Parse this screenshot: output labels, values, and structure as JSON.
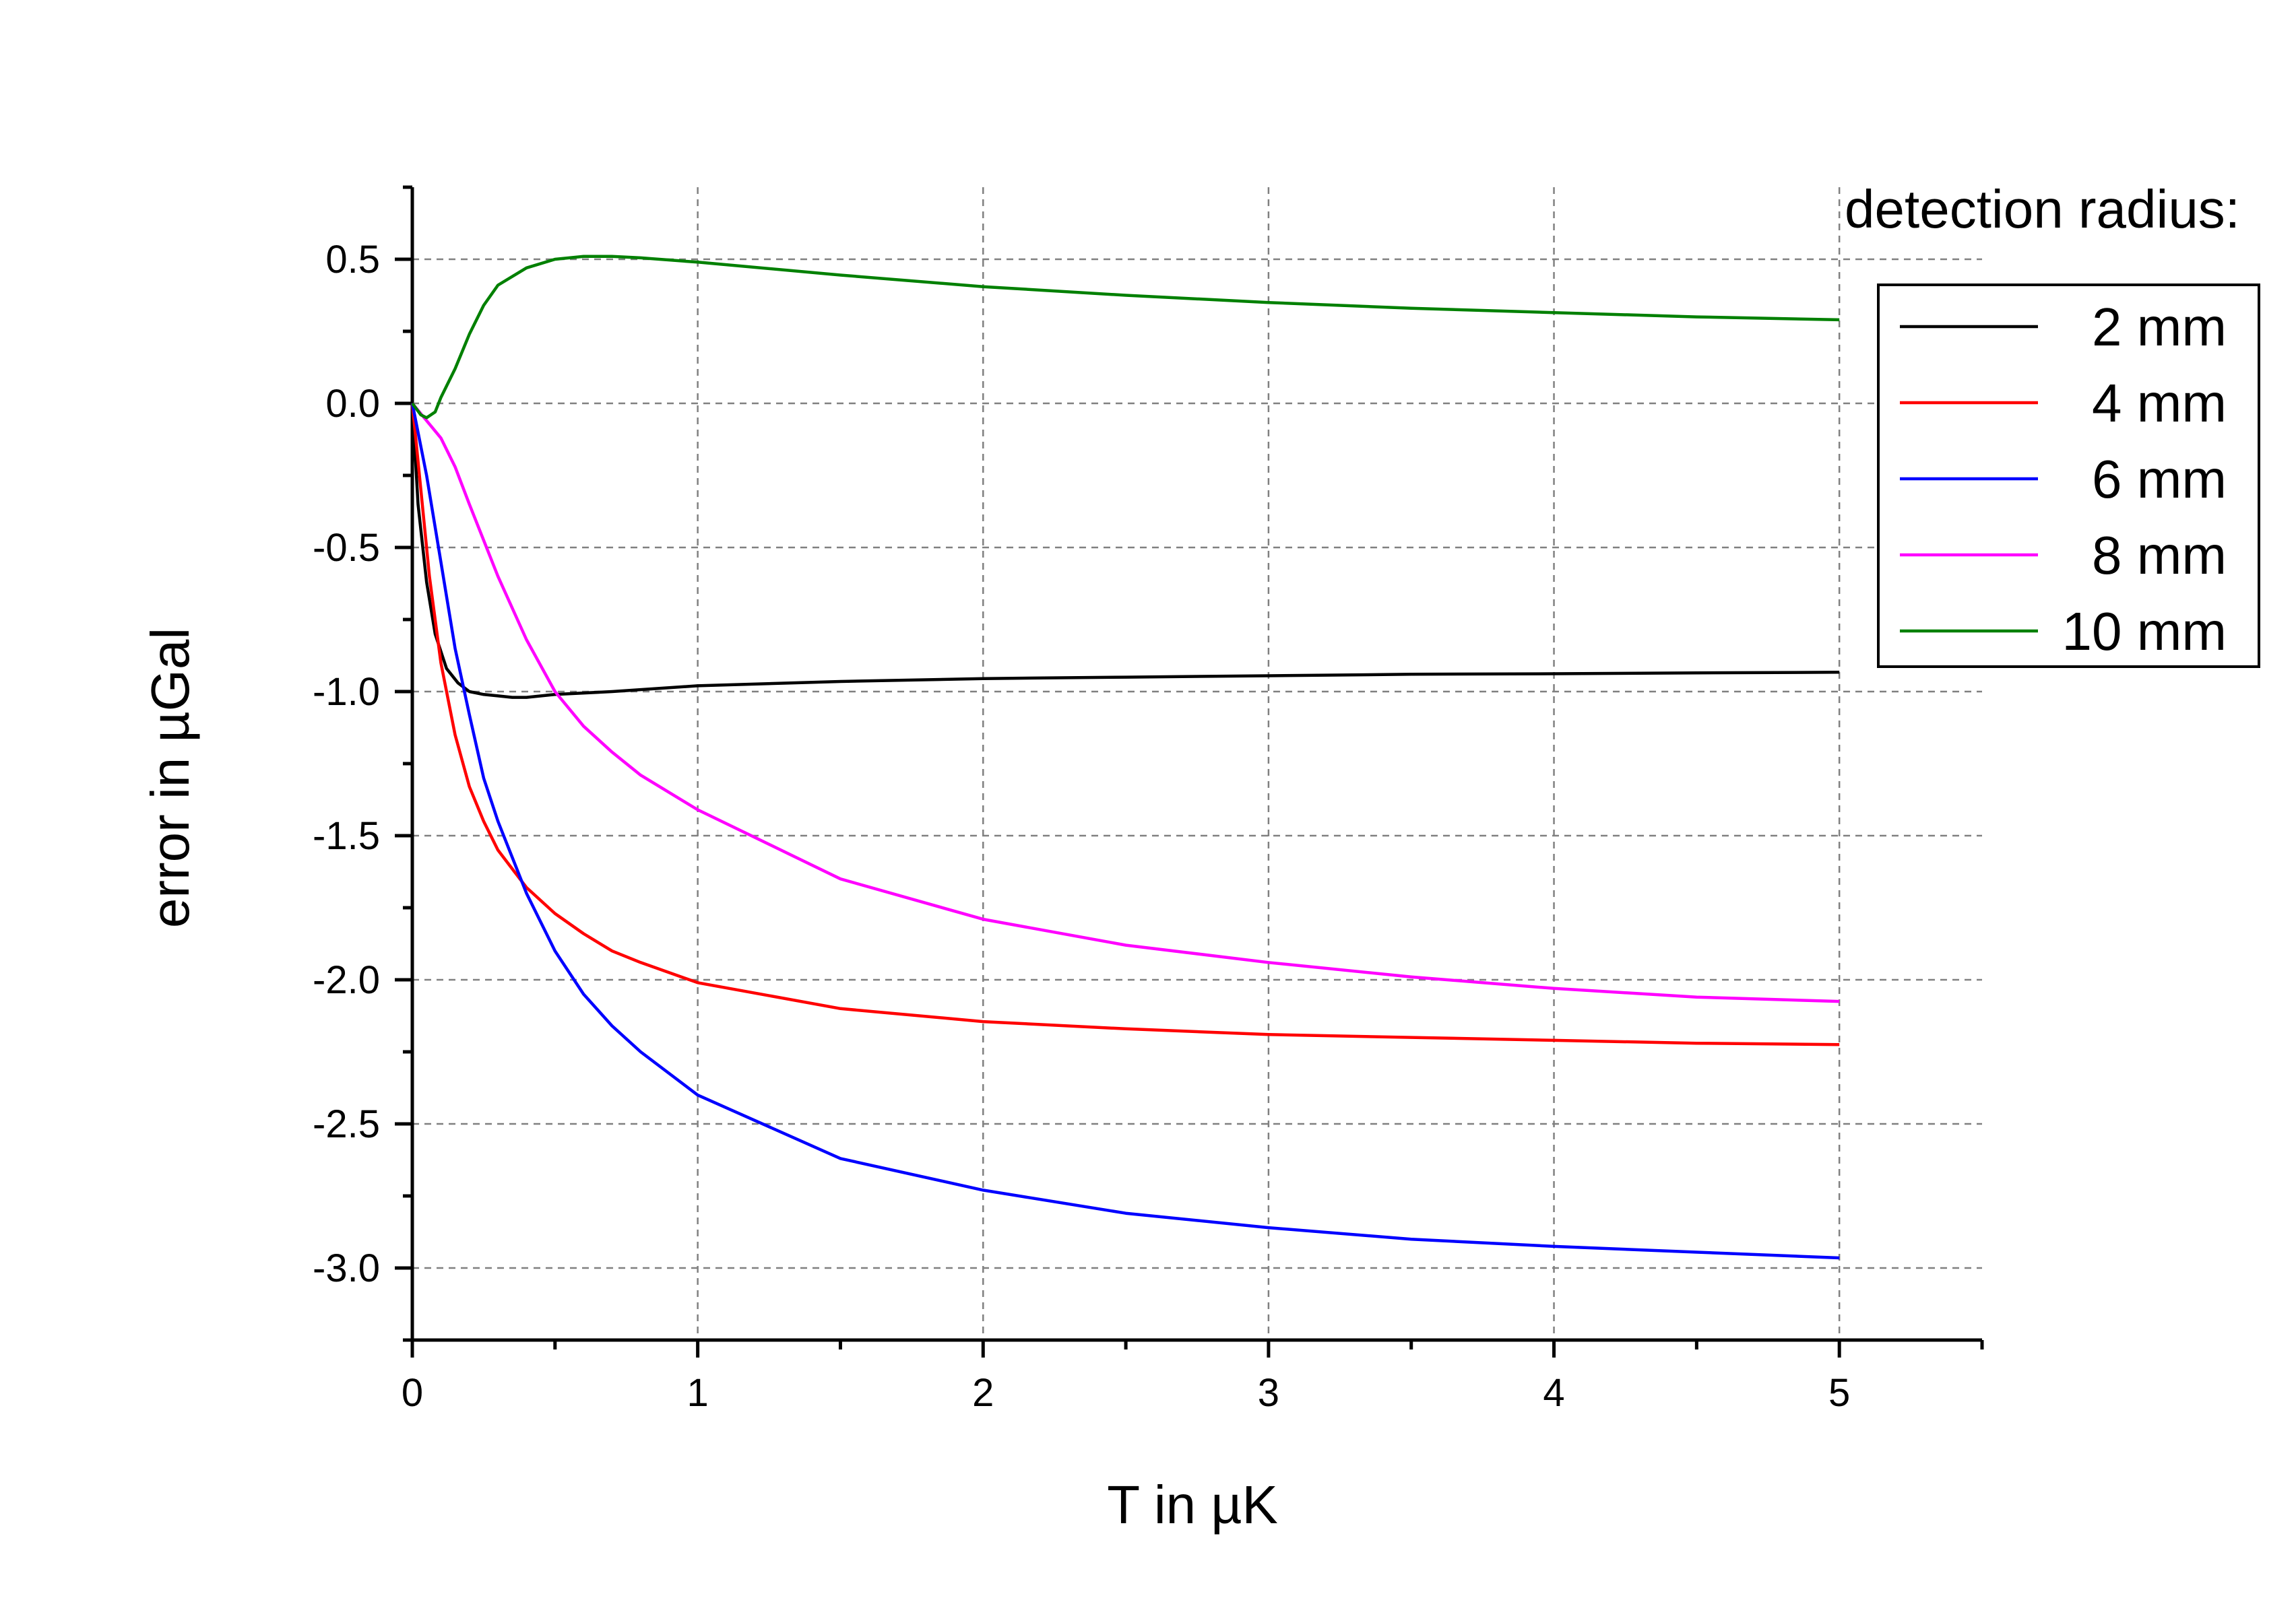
{
  "chart_data": {
    "type": "line",
    "title": "",
    "xlabel": "T in µK",
    "ylabel": "error in µGal",
    "xlim": [
      0,
      5.5
    ],
    "ylim": [
      -3.25,
      0.75
    ],
    "x_ticks": [
      0,
      1,
      2,
      3,
      4,
      5
    ],
    "x_tick_labels": [
      "0",
      "1",
      "2",
      "3",
      "4",
      "5"
    ],
    "y_ticks": [
      0.5,
      0.0,
      -0.5,
      -1.0,
      -1.5,
      -2.0,
      -2.5,
      -3.0
    ],
    "y_tick_labels": [
      "0.5",
      "0.0",
      "-0.5",
      "-1.0",
      "-1.5",
      "-2.0",
      "-2.5",
      "-3.0"
    ],
    "grid": true,
    "legend_title": "detection radius:",
    "legend_position": "top-right",
    "series": [
      {
        "name": "2 mm",
        "color": "#000000",
        "x": [
          0,
          0.02,
          0.05,
          0.08,
          0.12,
          0.16,
          0.2,
          0.25,
          0.3,
          0.35,
          0.4,
          0.5,
          0.7,
          1.0,
          1.5,
          2.0,
          2.5,
          3.0,
          3.5,
          4.0,
          4.5,
          5.0
        ],
        "y": [
          0,
          -0.35,
          -0.62,
          -0.8,
          -0.92,
          -0.97,
          -1.0,
          -1.01,
          -1.015,
          -1.02,
          -1.02,
          -1.01,
          -1.0,
          -0.98,
          -0.965,
          -0.955,
          -0.95,
          -0.945,
          -0.94,
          -0.938,
          -0.935,
          -0.933
        ]
      },
      {
        "name": "4 mm",
        "color": "#ff0000",
        "x": [
          0,
          0.03,
          0.06,
          0.1,
          0.15,
          0.2,
          0.25,
          0.3,
          0.4,
          0.5,
          0.6,
          0.7,
          0.8,
          1.0,
          1.5,
          2.0,
          2.5,
          3.0,
          3.5,
          4.0,
          4.5,
          5.0
        ],
        "y": [
          0,
          -0.3,
          -0.6,
          -0.9,
          -1.15,
          -1.33,
          -1.45,
          -1.55,
          -1.68,
          -1.77,
          -1.84,
          -1.9,
          -1.94,
          -2.01,
          -2.1,
          -2.145,
          -2.17,
          -2.19,
          -2.2,
          -2.21,
          -2.22,
          -2.225
        ]
      },
      {
        "name": "6 mm",
        "color": "#0000ff",
        "x": [
          0,
          0.05,
          0.1,
          0.15,
          0.2,
          0.25,
          0.3,
          0.4,
          0.5,
          0.6,
          0.7,
          0.8,
          1.0,
          1.5,
          2.0,
          2.5,
          3.0,
          3.5,
          4.0,
          4.5,
          5.0
        ],
        "y": [
          0,
          -0.25,
          -0.55,
          -0.85,
          -1.08,
          -1.3,
          -1.45,
          -1.7,
          -1.9,
          -2.05,
          -2.16,
          -2.25,
          -2.4,
          -2.62,
          -2.73,
          -2.81,
          -2.86,
          -2.9,
          -2.925,
          -2.945,
          -2.965
        ]
      },
      {
        "name": "8 mm",
        "color": "#ff00ff",
        "x": [
          0,
          0.05,
          0.1,
          0.15,
          0.2,
          0.3,
          0.4,
          0.5,
          0.6,
          0.7,
          0.8,
          1.0,
          1.5,
          2.0,
          2.5,
          3.0,
          3.5,
          4.0,
          4.5,
          5.0
        ],
        "y": [
          0,
          -0.06,
          -0.12,
          -0.22,
          -0.35,
          -0.6,
          -0.82,
          -1.0,
          -1.12,
          -1.21,
          -1.29,
          -1.41,
          -1.65,
          -1.79,
          -1.88,
          -1.94,
          -1.99,
          -2.03,
          -2.06,
          -2.075
        ]
      },
      {
        "name": "10 mm",
        "color": "#008000",
        "x": [
          0,
          0.03,
          0.05,
          0.08,
          0.1,
          0.15,
          0.2,
          0.25,
          0.3,
          0.4,
          0.5,
          0.6,
          0.7,
          0.8,
          1.0,
          1.5,
          2.0,
          2.5,
          3.0,
          3.5,
          4.0,
          4.5,
          5.0
        ],
        "y": [
          0,
          -0.04,
          -0.05,
          -0.03,
          0.02,
          0.12,
          0.24,
          0.34,
          0.41,
          0.47,
          0.5,
          0.51,
          0.51,
          0.505,
          0.49,
          0.445,
          0.405,
          0.375,
          0.35,
          0.33,
          0.315,
          0.3,
          0.29
        ]
      }
    ]
  }
}
